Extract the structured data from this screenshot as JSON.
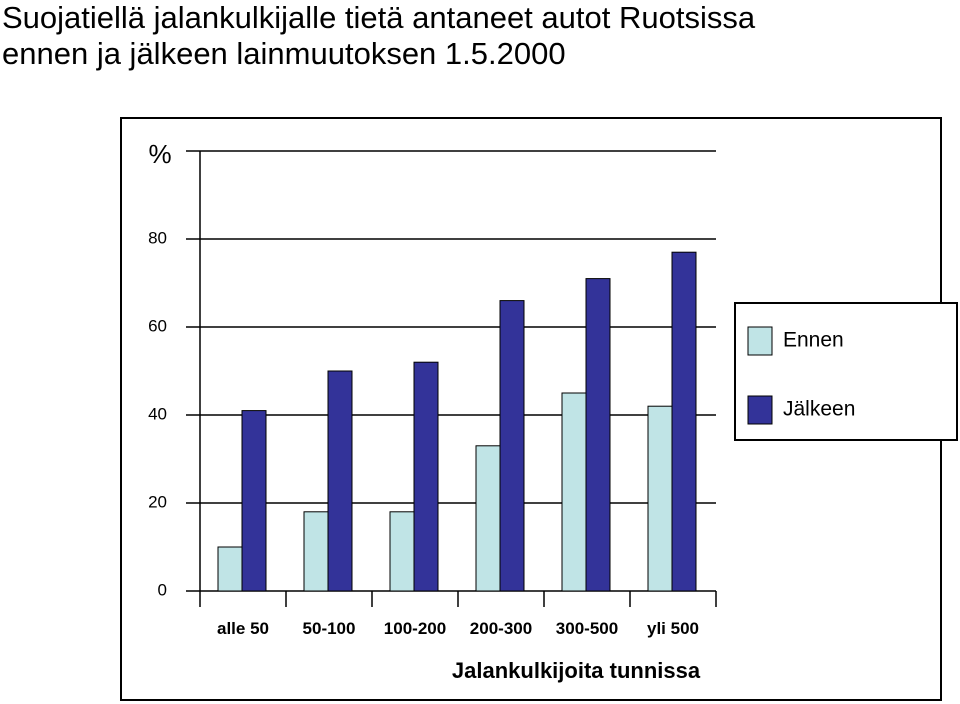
{
  "title": {
    "line1": "Suojatiellä jalankulkijalle tietä antaneet autot Ruotsissa",
    "line2": "ennen ja jälkeen lainmuutoksen 1.5.2000"
  },
  "chart_data": {
    "type": "bar",
    "title": "Suojatiellä jalankulkijalle tietä antaneet autot Ruotsissa ennen ja jälkeen lainmuutoksen 1.5.2000",
    "ylabel": "%",
    "xlabel": "Jalankulkijoita tunnissa",
    "ylim": [
      0,
      100
    ],
    "yticks": [
      0,
      20,
      40,
      60,
      80
    ],
    "categories": [
      "alle 50",
      "50-100",
      "100-200",
      "200-300",
      "300-500",
      "yli 500"
    ],
    "series": [
      {
        "name": "Ennen",
        "color": "#c0e4e6",
        "values": [
          10,
          18,
          18,
          33,
          45,
          42
        ]
      },
      {
        "name": "Jälkeen",
        "color": "#333399",
        "values": [
          41,
          50,
          52,
          66,
          71,
          77
        ]
      }
    ],
    "grid": false,
    "legend": "right"
  }
}
